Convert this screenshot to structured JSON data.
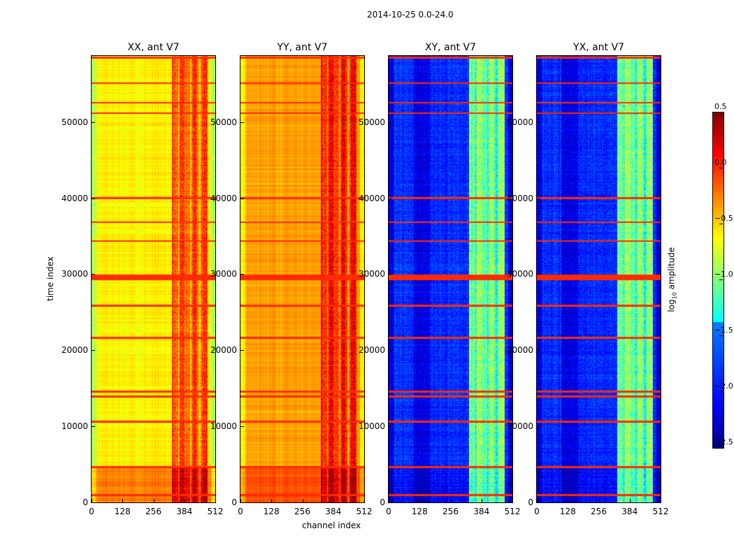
{
  "title": "2014-10-25 0.0-24.0",
  "chart_data": {
    "type": "heatmap",
    "suptitle": "2014-10-25 0.0-24.0",
    "xlabel": "channel index",
    "ylabel": "time index",
    "xlim": [
      0,
      512
    ],
    "ylim": [
      0,
      58700
    ],
    "xticks": [
      "0",
      "128",
      "256",
      "384",
      "512"
    ],
    "yticks": [
      "0",
      "10000",
      "20000",
      "30000",
      "40000",
      "50000"
    ],
    "colormap": "jet",
    "colorbar": {
      "label": "log10 amplitude",
      "label_main": "log",
      "label_sub": "10",
      "label_rest": " amplitude",
      "range": [
        -2.5,
        0.5
      ],
      "ticks": [
        "0.5",
        "0.0",
        "−0.5",
        "−1.0",
        "−1.5",
        "−2.0",
        "−2.5"
      ]
    },
    "rfi_band_channels": [
      330,
      480
    ],
    "flagged_time_rows": [
      1000,
      4690,
      10660,
      13970,
      14610,
      21690,
      25920,
      29600,
      34375,
      36860,
      40070,
      51195,
      52570,
      55150,
      58500
    ],
    "panels": [
      {
        "title": "XX, ant V7",
        "base_log_amp": -0.6,
        "band_log_amp": -0.1,
        "early_offset": 0.35
      },
      {
        "title": "YY, ant V7",
        "base_log_amp": -0.35,
        "band_log_amp": 0.05,
        "early_offset": 0.25
      },
      {
        "title": "XY, ant V7",
        "base_log_amp": -2.0,
        "band_log_amp": -1.0,
        "early_offset": -0.1
      },
      {
        "title": "YX, ant V7",
        "base_log_amp": -2.0,
        "band_log_amp": -1.0,
        "early_offset": -0.1
      }
    ]
  }
}
